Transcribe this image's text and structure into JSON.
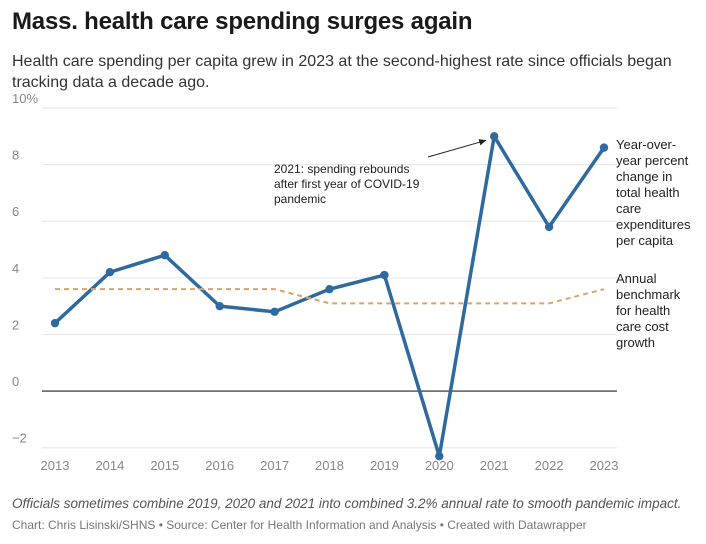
{
  "header": {
    "title": "Mass. health care spending surges again",
    "subtitle": "Health care spending per capita grew in 2023 at the second-highest rate since officials began tracking data a decade ago."
  },
  "footer": {
    "note": "Officials sometimes combine 2019, 2020 and 2021 into combined 3.2% annual rate to smooth pandemic impact.",
    "byline": "Chart: Chris Lisinski/SHNS • Source: Center for Health Information and Analysis • Created with Datawrapper"
  },
  "colors": {
    "spending": "#2f6a9e",
    "benchmark": "#d9a467",
    "grid": "#e6e6e6",
    "zero": "#222222"
  },
  "chart_data": {
    "type": "line",
    "title": "Mass. health care spending surges again",
    "x": [
      "2013",
      "2014",
      "2015",
      "2016",
      "2017",
      "2018",
      "2019",
      "2020",
      "2021",
      "2022",
      "2023"
    ],
    "ylim": [
      -3,
      10
    ],
    "yticks": [
      -2,
      0,
      2,
      4,
      6,
      8,
      10
    ],
    "ytick_labels": [
      "−2",
      "0",
      "2",
      "4",
      "6",
      "8",
      "10%"
    ],
    "grid": true,
    "series": [
      {
        "name": "spending",
        "style": "solid",
        "markers": true,
        "label_lines": [
          "Year-over-",
          "year percent",
          "change in",
          "total health",
          "care",
          "expenditures",
          "per capita"
        ],
        "values": [
          2.4,
          4.2,
          4.8,
          3.0,
          2.8,
          3.6,
          4.1,
          -2.3,
          9.0,
          5.8,
          8.6
        ]
      },
      {
        "name": "benchmark",
        "style": "dashed",
        "markers": false,
        "label_lines": [
          "Annual",
          "benchmark",
          "for health",
          "care cost",
          "growth"
        ],
        "values": [
          3.6,
          3.6,
          3.6,
          3.6,
          3.6,
          3.1,
          3.1,
          3.1,
          3.1,
          3.1,
          3.6
        ]
      }
    ],
    "annotations": [
      {
        "lines": [
          "2021: spending rebounds",
          "after first year of COVID-19",
          "pandemic"
        ],
        "target_x": "2021",
        "target_y": 9.0
      }
    ]
  }
}
